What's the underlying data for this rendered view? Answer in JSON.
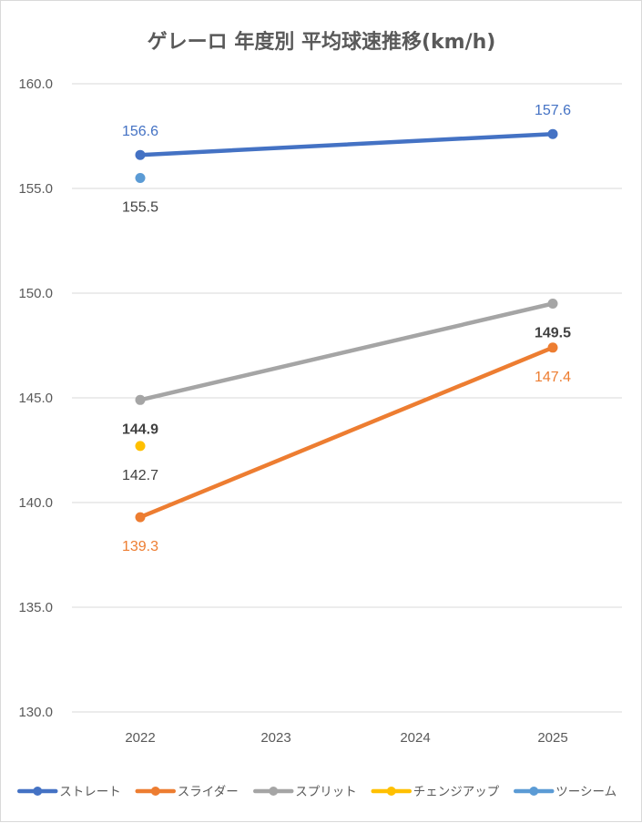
{
  "chart_data": {
    "type": "line",
    "title": "ゲレーロ 年度別 平均球速推移(km/h)",
    "xlabel": "",
    "ylabel": "",
    "categories": [
      "2022",
      "2023",
      "2024",
      "2025"
    ],
    "ylim": [
      130.0,
      160.0
    ],
    "ytick_step": 5,
    "yticks": [
      "130.0",
      "135.0",
      "140.0",
      "145.0",
      "150.0",
      "155.0",
      "160.0"
    ],
    "grid": true,
    "legend_position": "bottom",
    "series": [
      {
        "name": "ストレート",
        "color": "#4472C4",
        "values": [
          156.6,
          null,
          null,
          157.6
        ],
        "labels": [
          "156.6",
          "",
          "",
          "157.6"
        ],
        "label_pos": [
          "above",
          "",
          "",
          "above"
        ],
        "label_color": "#4472C4",
        "bold": false
      },
      {
        "name": "スライダー",
        "color": "#ED7D31",
        "values": [
          139.3,
          null,
          null,
          147.4
        ],
        "labels": [
          "139.3",
          "",
          "",
          "147.4"
        ],
        "label_pos": [
          "below",
          "",
          "",
          "below"
        ],
        "label_color": "#ED7D31",
        "bold": false
      },
      {
        "name": "スプリット",
        "color": "#A5A5A5",
        "values": [
          144.9,
          null,
          null,
          149.5
        ],
        "labels": [
          "144.9",
          "",
          "",
          "149.5"
        ],
        "label_pos": [
          "below",
          "",
          "",
          "below"
        ],
        "label_color": "#404040",
        "bold": true
      },
      {
        "name": "チェンジアップ",
        "color": "#FFC000",
        "values": [
          142.7,
          null,
          null,
          null
        ],
        "labels": [
          "142.7",
          "",
          "",
          ""
        ],
        "label_pos": [
          "below",
          "",
          "",
          ""
        ],
        "label_color": "#404040",
        "bold": false
      },
      {
        "name": "ツーシーム",
        "color": "#5B9BD5",
        "values": [
          155.5,
          null,
          null,
          null
        ],
        "labels": [
          "155.5",
          "",
          "",
          ""
        ],
        "label_pos": [
          "below",
          "",
          "",
          ""
        ],
        "label_color": "#404040",
        "bold": false
      }
    ]
  }
}
